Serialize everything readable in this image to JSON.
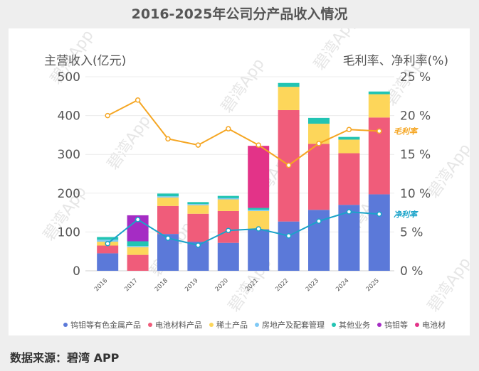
{
  "page": {
    "title": "2016-2025年公司分产品收入情况",
    "source": "数据来源：碧湾 APP",
    "watermark": "碧湾App"
  },
  "chart_data": {
    "type": "bar",
    "stacked": true,
    "title": "2016-2025年公司分产品收入情况",
    "categories": [
      "2016",
      "2017",
      "2018",
      "2019",
      "2020",
      "2021",
      "2022",
      "2023",
      "2024",
      "2025"
    ],
    "ylabel_left": "主营收入(亿元)",
    "ylabel_right": "毛利率、净利率(%)",
    "ylim_left": [
      0,
      500
    ],
    "ylim_right": [
      0,
      25
    ],
    "left_ticks": [
      "0",
      "100",
      "200",
      "300",
      "400",
      "500"
    ],
    "right_ticks": [
      "0 %",
      "5 %",
      "10 %",
      "15 %",
      "20 %",
      "25 %"
    ],
    "grid": true,
    "legend_position": "bottom",
    "series": [
      {
        "name": "钨钼等有色金属产品",
        "color": "#5b79d9",
        "values": [
          45,
          0,
          95,
          75,
          72,
          107,
          127,
          157,
          170,
          197
        ]
      },
      {
        "name": "电池材料产品",
        "color": "#f05c7a",
        "values": [
          20,
          41,
          72,
          72,
          82,
          0,
          287,
          170,
          133,
          198
        ]
      },
      {
        "name": "稀土产品",
        "color": "#fdd65a",
        "values": [
          10,
          20,
          22,
          22,
          30,
          47,
          60,
          52,
          35,
          60
        ]
      },
      {
        "name": "房地产及配套管理",
        "color": "#7fc9f5",
        "values": [
          5,
          3,
          3,
          3,
          3,
          3,
          0,
          0,
          0,
          0
        ]
      },
      {
        "name": "其他业务",
        "color": "#22c4b3",
        "values": [
          7,
          12,
          7,
          5,
          6,
          5,
          10,
          15,
          7,
          7
        ]
      },
      {
        "name": "钨钼等",
        "color": "#a52cc4",
        "values": [
          0,
          67,
          0,
          0,
          0,
          0,
          0,
          0,
          0,
          0
        ]
      },
      {
        "name": "电池材",
        "color": "#e33388",
        "values": [
          0,
          0,
          0,
          0,
          0,
          160,
          0,
          0,
          0,
          0
        ]
      }
    ],
    "lines": [
      {
        "name": "毛利率",
        "axis": "right",
        "color": "#f5a623",
        "values": [
          20,
          22,
          17,
          16.2,
          18.3,
          16.2,
          13.6,
          16.4,
          18.2,
          18
        ]
      },
      {
        "name": "净利率",
        "axis": "right",
        "color": "#1aa3c9",
        "values": [
          3.5,
          6.6,
          4.2,
          3.3,
          5.2,
          5.4,
          4.5,
          6.4,
          7.6,
          7.3
        ]
      }
    ]
  }
}
